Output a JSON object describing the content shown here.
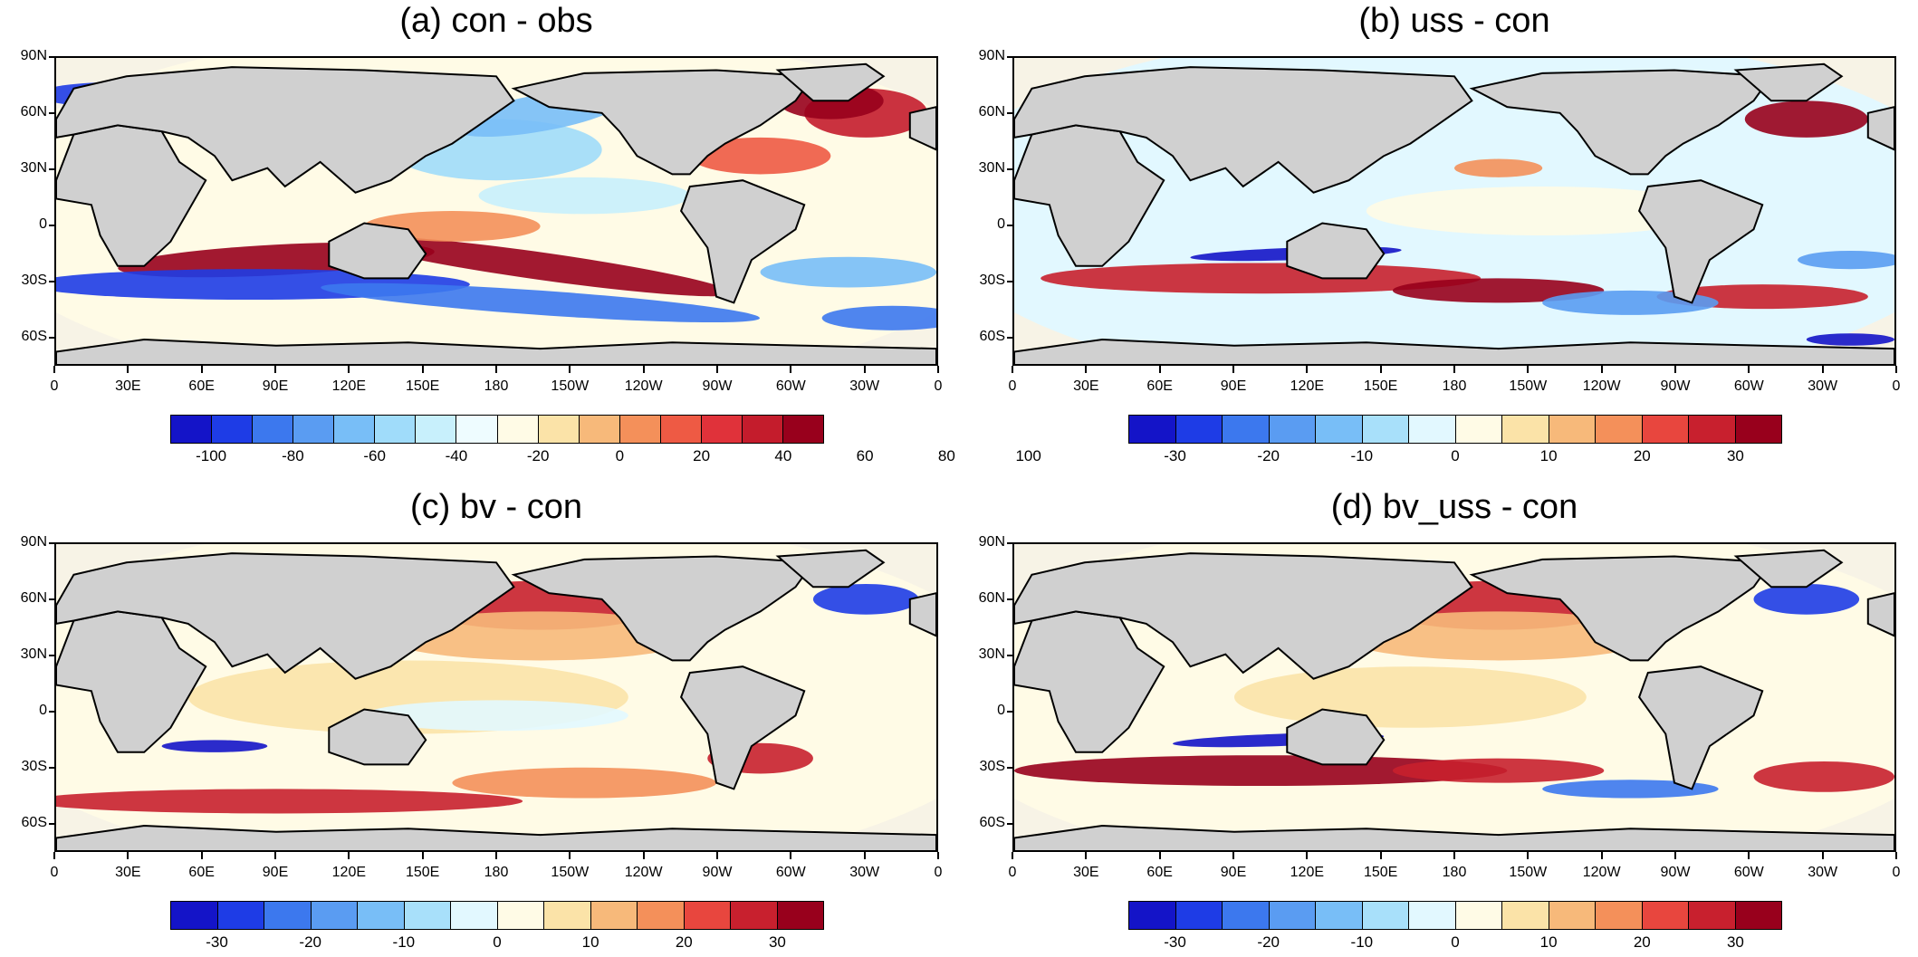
{
  "colors": {
    "palette16": [
      "#1414c8",
      "#1e3ce6",
      "#3c78ee",
      "#5a9cf2",
      "#78bef7",
      "#a0dcfa",
      "#c8f0fc",
      "#eefcff",
      "#fffbe6",
      "#fbe3a8",
      "#f7b97a",
      "#f4905a",
      "#ee5a44",
      "#e0323a",
      "#c41c2c",
      "#98001c"
    ],
    "palette14": [
      "#1414c8",
      "#1e3ce6",
      "#3c78ee",
      "#5a9cf2",
      "#78bef7",
      "#a8e0fa",
      "#e2f8ff",
      "#fffbe6",
      "#fbe3a8",
      "#f7b97a",
      "#f4905a",
      "#e8463e",
      "#c8202e",
      "#98001c"
    ],
    "land": "#d0d0d0",
    "coast": "#000000"
  },
  "axes": {
    "lat_labels": [
      "90N",
      "60N",
      "30N",
      "0",
      "30S",
      "60S"
    ],
    "lon_labels": [
      "0",
      "30E",
      "60E",
      "90E",
      "120E",
      "150E",
      "180",
      "150W",
      "120W",
      "90W",
      "60W",
      "30W",
      "0"
    ]
  },
  "panels": [
    {
      "title": "(a) con - obs",
      "palette": "palette16",
      "colorbar_labels": [
        "-100",
        "-80",
        "-60",
        "-40",
        "-20",
        "0",
        "20",
        "40",
        "60",
        "80",
        "100"
      ]
    },
    {
      "title": "(b) uss - con",
      "palette": "palette14",
      "colorbar_labels": [
        "-30",
        "-20",
        "-10",
        "0",
        "10",
        "20",
        "30"
      ]
    },
    {
      "title": "(c) bv - con",
      "palette": "palette14",
      "colorbar_labels": [
        "-30",
        "-20",
        "-10",
        "0",
        "10",
        "20",
        "30"
      ]
    },
    {
      "title": "(d) bv_uss - con",
      "palette": "palette14",
      "colorbar_labels": [
        "-30",
        "-20",
        "-10",
        "0",
        "10",
        "20",
        "30"
      ]
    }
  ]
}
